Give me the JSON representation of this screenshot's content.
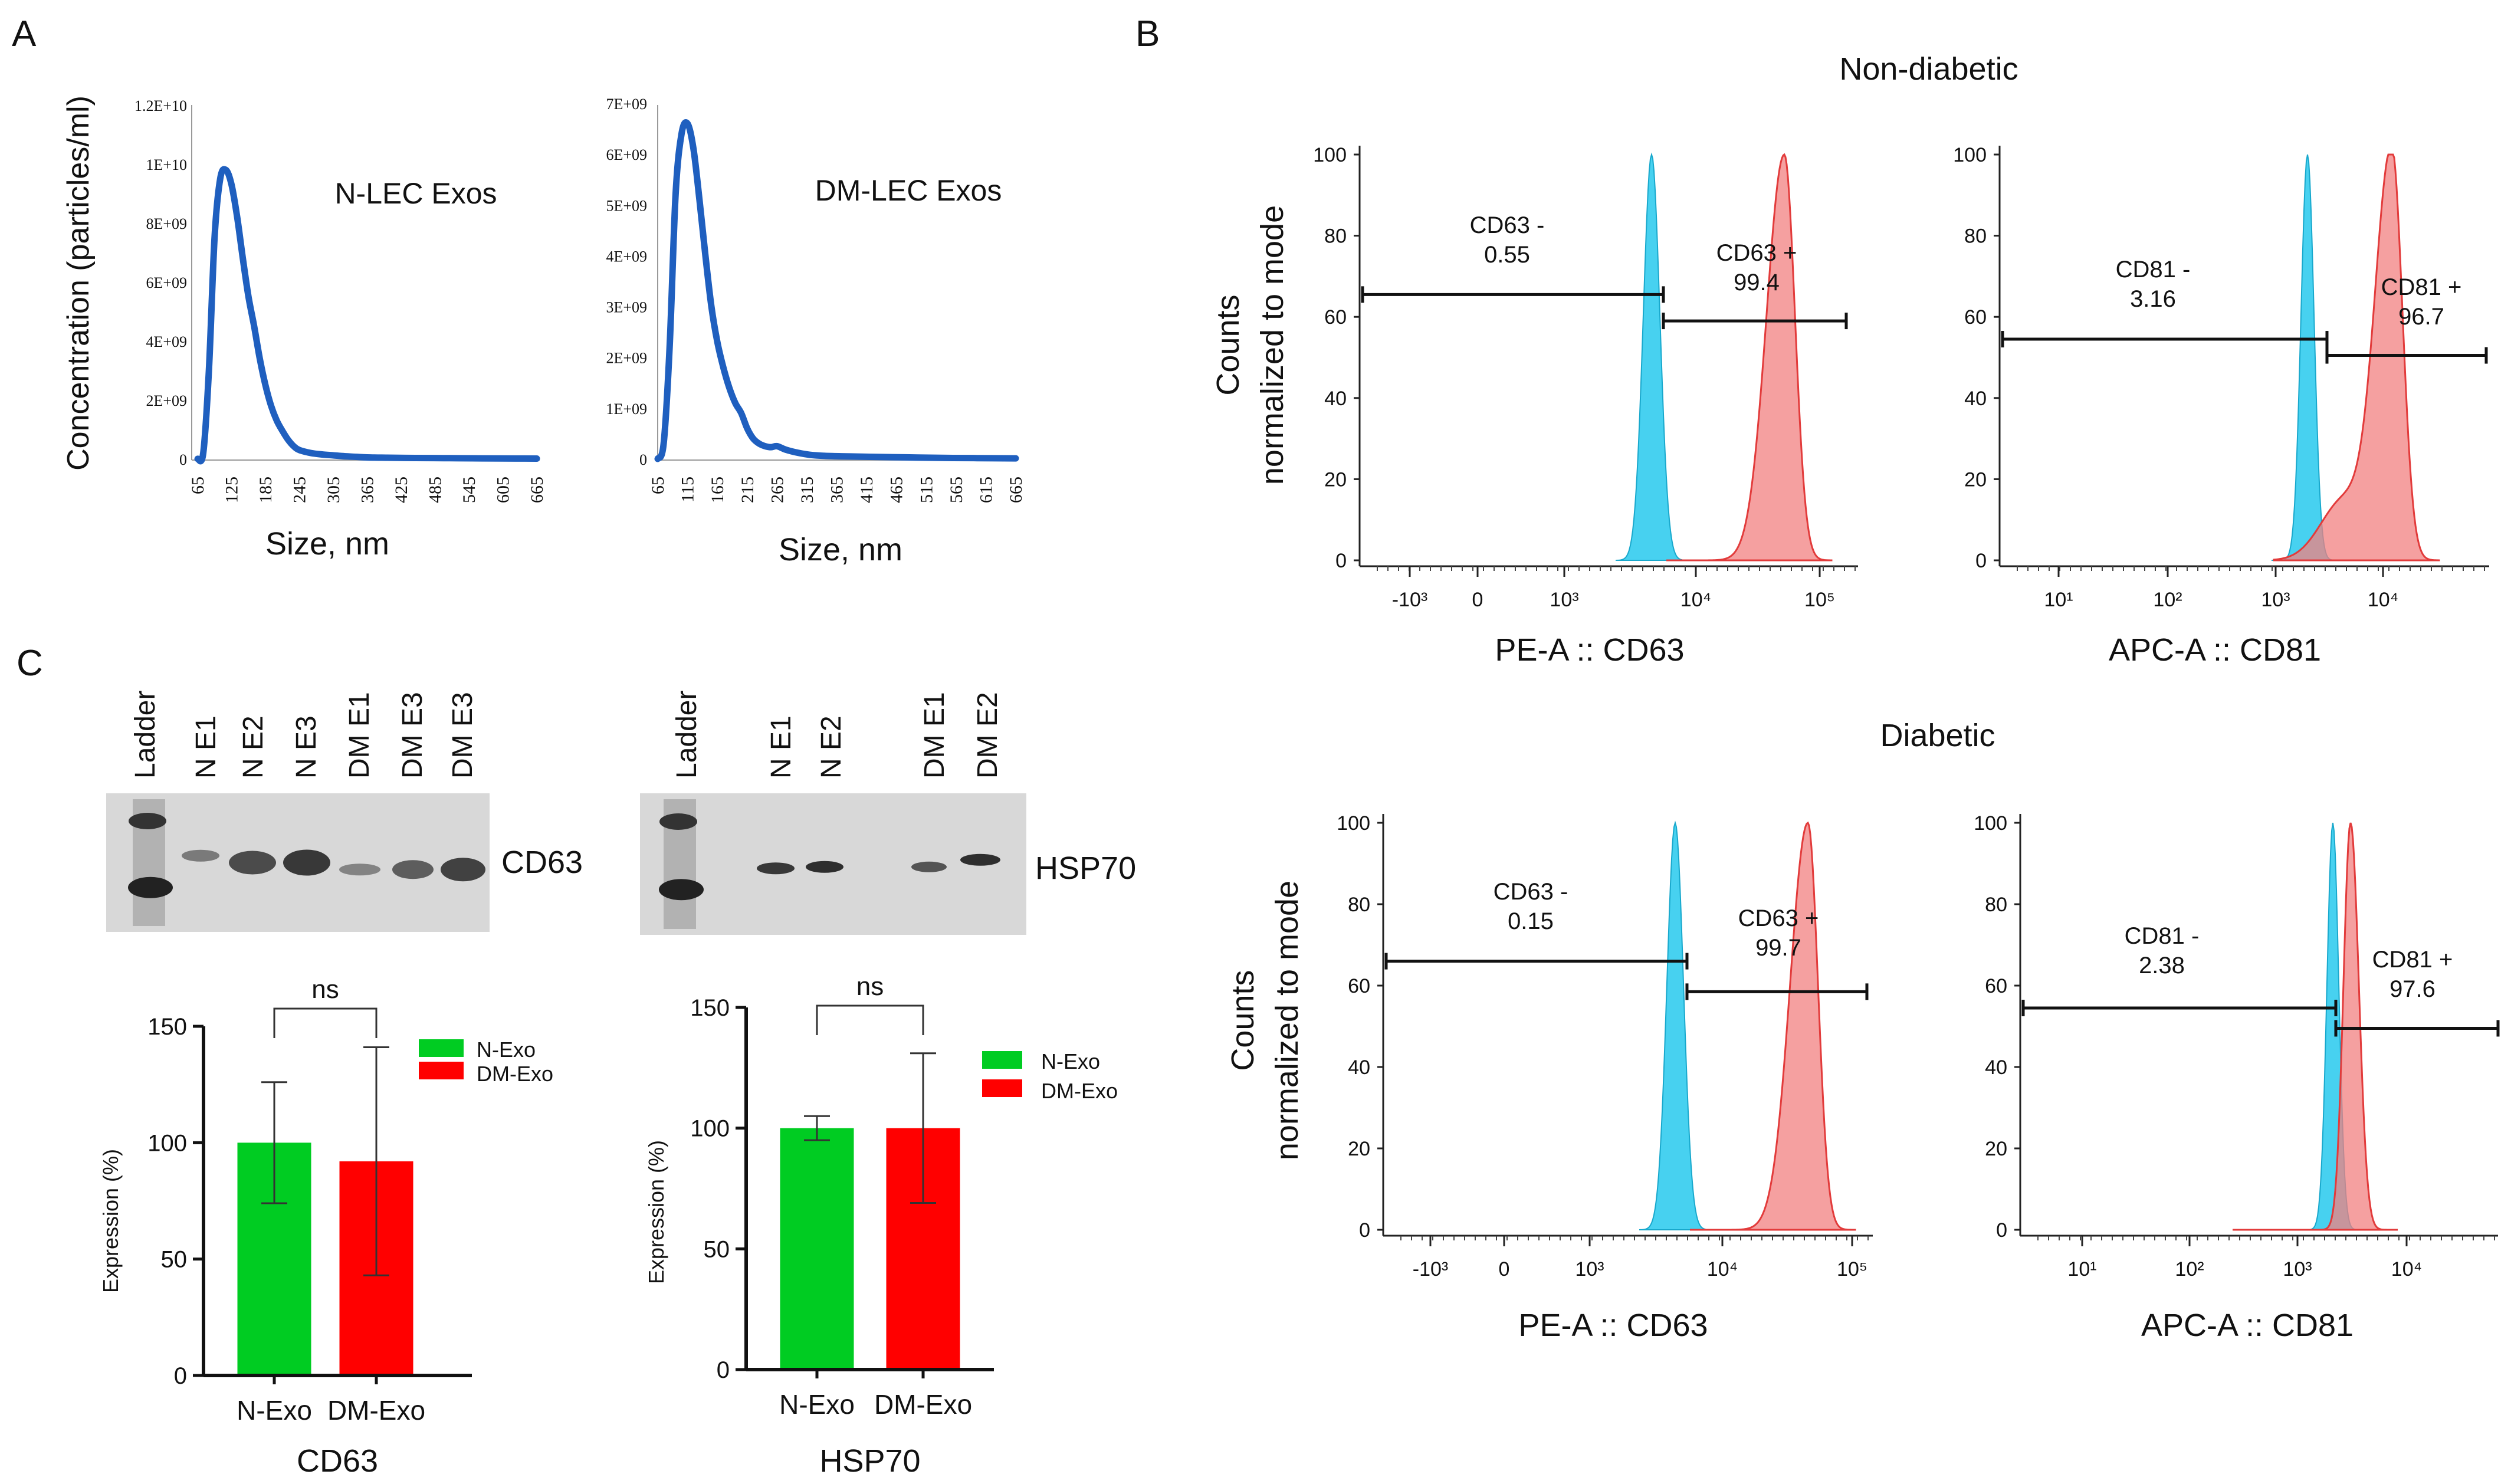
{
  "panel_labels": {
    "a": "A",
    "b": "B",
    "c": "C"
  },
  "panel_a": {
    "ylabel": "Concentration (particles/ml)",
    "xlabel": "Size, nm",
    "x_ticks": [
      "65",
      "125",
      "185",
      "245",
      "305",
      "365",
      "425",
      "485",
      "545",
      "605",
      "665"
    ],
    "chart_data": [
      {
        "type": "line",
        "title": "N-LEC Exos",
        "xlabel": "Size, nm",
        "ylabel": "Concentration (particles/ml)",
        "ylim": [
          0,
          12000000000
        ],
        "y_ticks": [
          "0",
          "2E+09",
          "4E+09",
          "6E+09",
          "8E+09",
          "1E+10",
          "1.2E+10"
        ],
        "color": "#1f5fbf",
        "x": [
          65,
          75,
          85,
          95,
          105,
          115,
          125,
          135,
          145,
          155,
          165,
          175,
          185,
          195,
          205,
          215,
          225,
          235,
          245,
          265,
          285,
          305,
          325,
          345,
          365,
          400,
          450,
          500,
          550,
          600,
          665
        ],
        "y": [
          0,
          200000000,
          3000000000,
          7500000000,
          9500000000,
          9800000000,
          9300000000,
          8200000000,
          6800000000,
          5500000000,
          4500000000,
          3400000000,
          2500000000,
          1800000000,
          1300000000,
          950000000,
          650000000,
          430000000,
          300000000,
          200000000,
          150000000,
          120000000,
          90000000,
          70000000,
          50000000,
          40000000,
          30000000,
          25000000,
          20000000,
          15000000,
          10000000
        ]
      },
      {
        "type": "line",
        "title": "DM-LEC Exos",
        "xlabel": "Size, nm",
        "ylabel": "Concentration (particles/ml)",
        "ylim": [
          0,
          7000000000
        ],
        "y_ticks": [
          "0",
          "1E+09",
          "2E+09",
          "3E+09",
          "4E+09",
          "5E+09",
          "6E+09",
          "7E+09"
        ],
        "x_ticks": [
          "65",
          "115",
          "165",
          "215",
          "265",
          "315",
          "365",
          "415",
          "465",
          "515",
          "565",
          "615",
          "665"
        ],
        "color": "#1f5fbf",
        "x": [
          65,
          75,
          85,
          95,
          105,
          115,
          125,
          135,
          145,
          155,
          165,
          175,
          185,
          195,
          205,
          215,
          225,
          235,
          245,
          255,
          265,
          280,
          300,
          320,
          345,
          380,
          420,
          480,
          540,
          600,
          665
        ],
        "y": [
          0,
          300000000,
          2200000000,
          5200000000,
          6400000000,
          6600000000,
          6100000000,
          5100000000,
          4000000000,
          3000000000,
          2300000000,
          1800000000,
          1400000000,
          1100000000,
          900000000,
          600000000,
          400000000,
          300000000,
          250000000,
          230000000,
          250000000,
          180000000,
          120000000,
          80000000,
          60000000,
          50000000,
          40000000,
          30000000,
          20000000,
          15000000,
          10000000
        ]
      }
    ]
  },
  "panel_b": {
    "section_titles": [
      "Non-diabetic",
      "Diabetic"
    ],
    "ylabel_line1": "Counts",
    "ylabel_line2": "normalized to mode",
    "y_ticks": [
      "0",
      "20",
      "40",
      "60",
      "80",
      "100"
    ],
    "pe_xlabel": "PE-A :: CD63",
    "apc_xlabel": "APC-A :: CD81",
    "pe_x_ticks": [
      "-10³",
      "0",
      "10³",
      "10⁴",
      "10⁵"
    ],
    "apc_x_ticks": [
      "10¹",
      "10²",
      "10³",
      "10⁴"
    ],
    "colors": {
      "control": "#33ccee",
      "stained": "#f28080",
      "stained_edge": "#e23b3b"
    },
    "gates": {
      "nd_cd63_neg_name": "CD63 -",
      "nd_cd63_neg_val": "0.55",
      "nd_cd63_pos_name": "CD63 +",
      "nd_cd63_pos_val": "99.4",
      "nd_cd81_neg_name": "CD81 -",
      "nd_cd81_neg_val": "3.16",
      "nd_cd81_pos_name": "CD81 +",
      "nd_cd81_pos_val": "96.7",
      "d_cd63_neg_name": "CD63 -",
      "d_cd63_neg_val": "0.15",
      "d_cd63_pos_name": "CD63 +",
      "d_cd63_pos_val": "99.7",
      "d_cd81_neg_name": "CD81 -",
      "d_cd81_neg_val": "2.38",
      "d_cd81_pos_name": "CD81 +",
      "d_cd81_pos_val": "97.6"
    }
  },
  "panel_c": {
    "blot1": {
      "lanes": [
        "Ladder",
        "N E1",
        "N E2",
        "N E3",
        "DM E1",
        "DM E3",
        "DM E3"
      ],
      "label": "CD63"
    },
    "blot2": {
      "lanes": [
        "Ladder",
        "N E1",
        "N E2",
        "DM E1",
        "DM E2"
      ],
      "label": "HSP70"
    },
    "ylabel": "Expression (%)",
    "sig": "ns",
    "legend": [
      "N-Exo",
      "DM-Exo"
    ],
    "colors": {
      "n_exo": "#00cc22",
      "dm_exo": "#ff0000"
    },
    "chart_data": [
      {
        "type": "bar",
        "title": "CD63",
        "categories": [
          "N-Exo",
          "DM-Exo"
        ],
        "values": [
          100,
          92
        ],
        "error": [
          26,
          49
        ],
        "ylim": [
          0,
          150
        ],
        "y_ticks": [
          "0",
          "50",
          "100",
          "150"
        ],
        "ylabel": "Expression (%)"
      },
      {
        "type": "bar",
        "title": "HSP70",
        "categories": [
          "N-Exo",
          "DM-Exo"
        ],
        "values": [
          100,
          100
        ],
        "error": [
          5,
          31
        ],
        "ylim": [
          0,
          150
        ],
        "y_ticks": [
          "0",
          "50",
          "100",
          "150"
        ],
        "ylabel": "Expression (%)"
      }
    ]
  }
}
